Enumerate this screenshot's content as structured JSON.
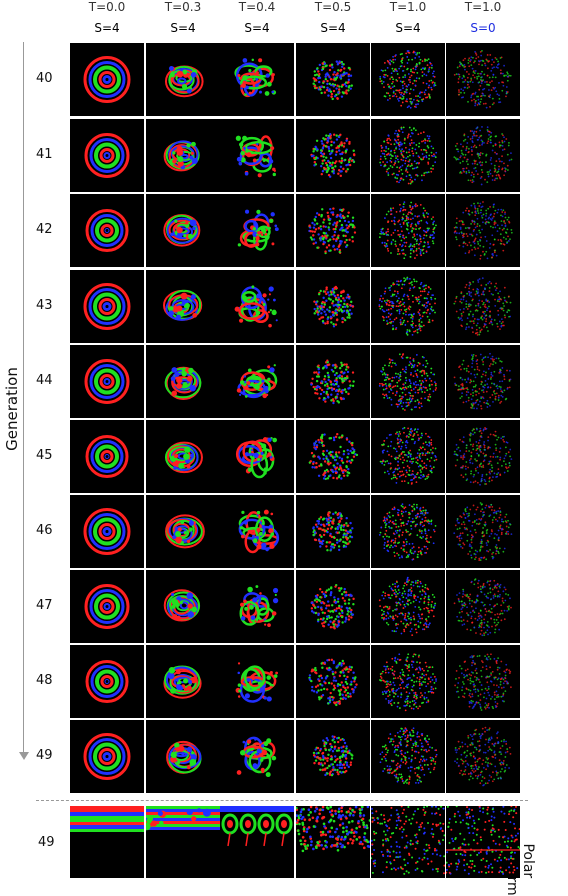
{
  "columns": [
    {
      "t": "T=0.0",
      "s": "S=4",
      "s_color": "#000000"
    },
    {
      "t": "T=0.3",
      "s": "S=4",
      "s_color": "#000000"
    },
    {
      "t": "T=0.4",
      "s": "S=4",
      "s_color": "#000000"
    },
    {
      "t": "T=0.5",
      "s": "S=4",
      "s_color": "#000000"
    },
    {
      "t": "T=1.0",
      "s": "S=4",
      "s_color": "#000000"
    },
    {
      "t": "T=1.0",
      "s": "S=0",
      "s_color": "#1f2ee0"
    }
  ],
  "y_axis_label": "Generation",
  "generations": [
    "40",
    "41",
    "42",
    "43",
    "44",
    "45",
    "46",
    "47",
    "48",
    "49"
  ],
  "polar": {
    "generation": "49",
    "label_line1": "Polar",
    "label_line2": "Transform"
  },
  "colors": {
    "red": "#ff2020",
    "green": "#20e020",
    "blue": "#2030ff",
    "background": "#000000"
  }
}
